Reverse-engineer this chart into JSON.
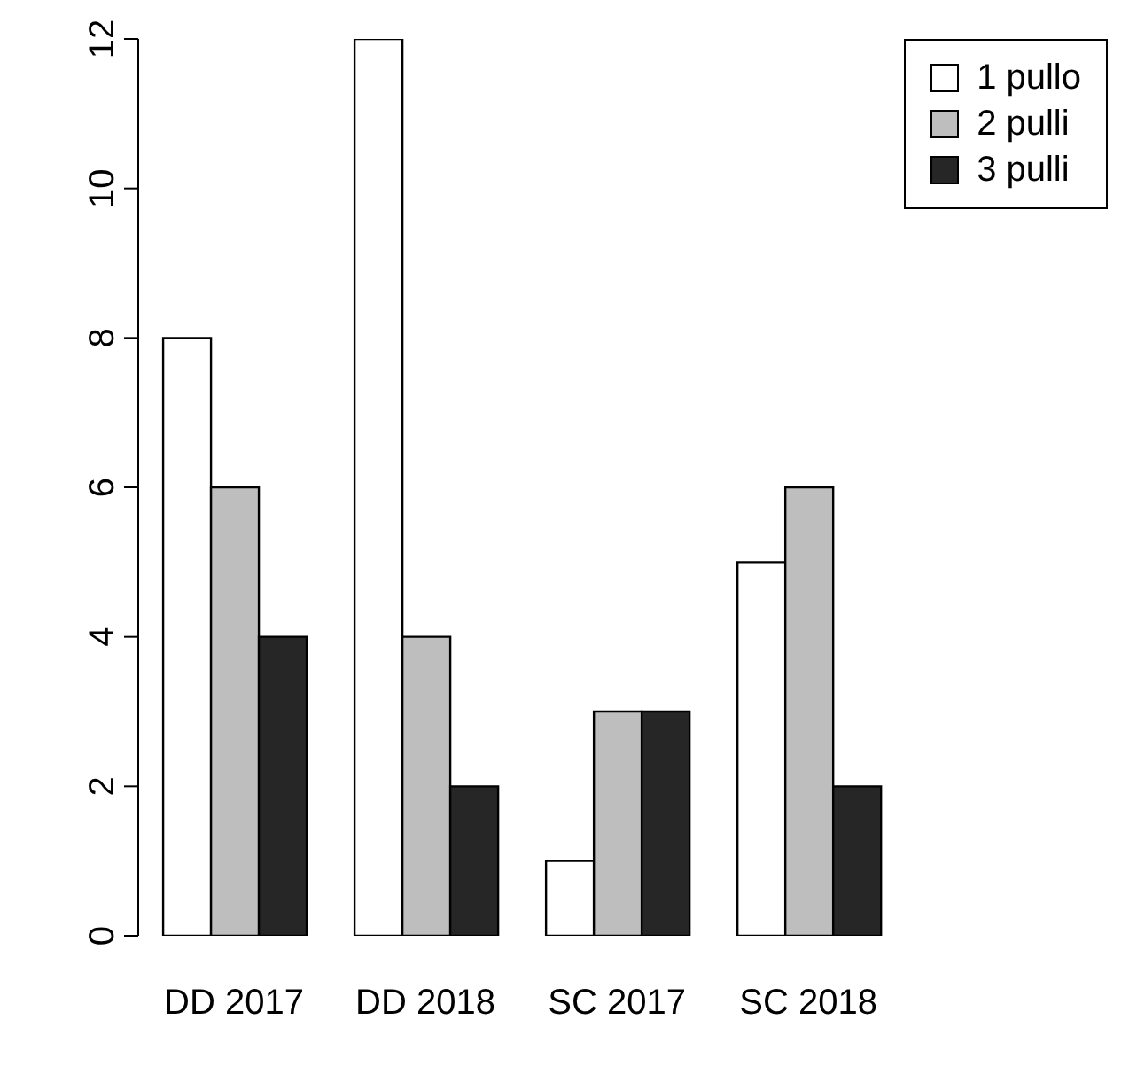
{
  "chart_data": {
    "type": "bar",
    "categories": [
      "DD 2017",
      "DD 2018",
      "SC 2017",
      "SC 2018"
    ],
    "series": [
      {
        "name": "1 pullo",
        "color": "#ffffff",
        "values": [
          8,
          12,
          1,
          5
        ]
      },
      {
        "name": "2 pulli",
        "color": "#bebebe",
        "values": [
          6,
          4,
          3,
          6
        ]
      },
      {
        "name": "3 pulli",
        "color": "#262626",
        "values": [
          4,
          2,
          3,
          2
        ]
      }
    ],
    "ylim": [
      0,
      12
    ],
    "yticks": [
      0,
      2,
      4,
      6,
      8,
      10,
      12
    ],
    "grid": false,
    "legend": "top right"
  }
}
